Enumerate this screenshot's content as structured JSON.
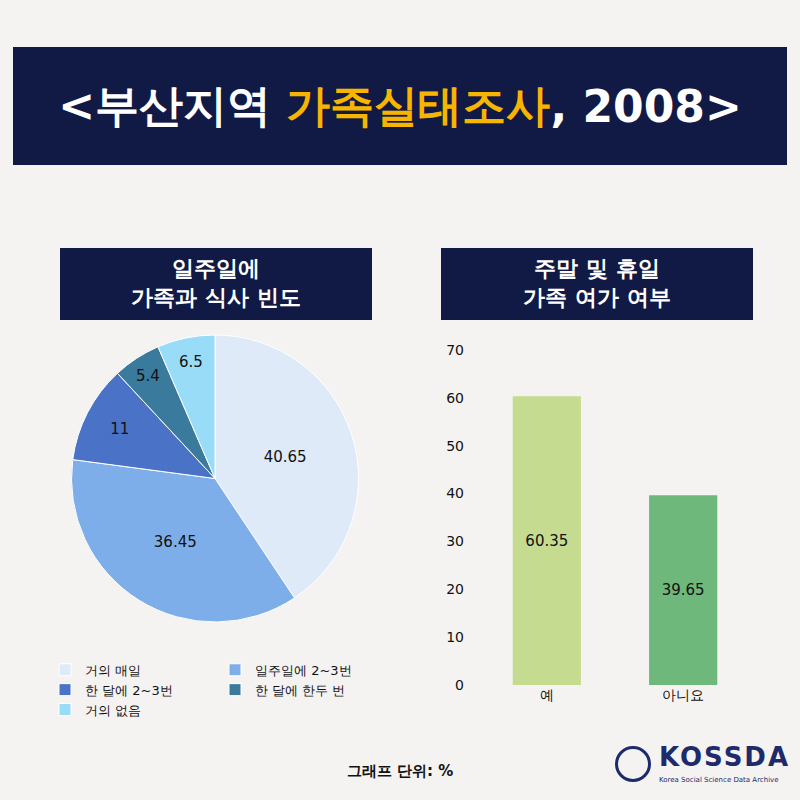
{
  "title": "<부산지역 가족실태조사, 2008>",
  "title_highlight": "가족실태조사",
  "note": "그래프 단위: %",
  "logo": {
    "name": "KOSSDA",
    "subtitle": "Korea Social Science Data Archive"
  },
  "chart_data": [
    {
      "type": "pie",
      "title": "일주일에\n가족과 식사 빈도",
      "categories": [
        "거의 매일",
        "일주일에 2~3번",
        "한 달에 2~3번",
        "한 달에 한두 번",
        "거의 없음"
      ],
      "values": [
        40.65,
        36.45,
        11,
        5.4,
        6.5
      ],
      "colors": [
        "#deeaf8",
        "#7eaee9",
        "#4a72c7",
        "#3a7a9c",
        "#99dcf7"
      ],
      "data_labels": true,
      "legend": "bottom"
    },
    {
      "type": "bar",
      "title": "주말 및 휴일\n가족 여가 여부",
      "categories": [
        "예",
        "아니요"
      ],
      "values": [
        60.35,
        39.65
      ],
      "colors": [
        "#c5db8f",
        "#6db87a"
      ],
      "ylim": [
        0,
        70
      ],
      "yticks": [
        0,
        10,
        20,
        30,
        40,
        50,
        60,
        70
      ],
      "grid": false,
      "data_labels": true
    }
  ]
}
